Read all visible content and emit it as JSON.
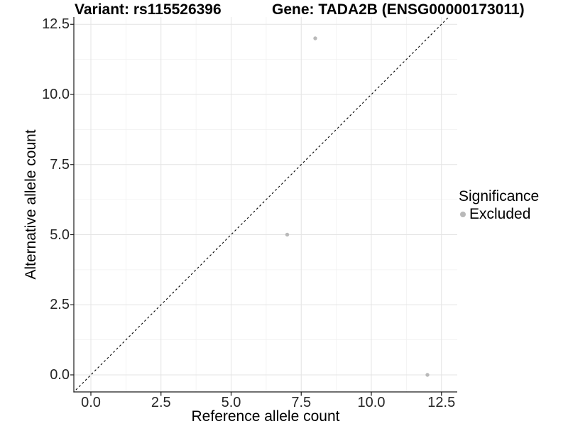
{
  "chart_data": {
    "type": "scatter",
    "title_left": "Variant: rs115526396",
    "title_right": "Gene: TADA2B (ENSG00000173011)",
    "xlabel": "Reference allele count",
    "ylabel": "Alternative allele count",
    "xlim": [
      -0.6,
      13.1
    ],
    "ylim": [
      -0.6,
      12.8
    ],
    "major_ticks": [
      0,
      2.5,
      5,
      7.5,
      10,
      12.5
    ],
    "tick_labels": [
      "0.0",
      "2.5",
      "5.0",
      "7.5",
      "10.0",
      "12.5"
    ],
    "minor_ticks": [
      1.25,
      3.75,
      6.25,
      8.75,
      11.25
    ],
    "grid": true,
    "identity_line": {
      "slope": 1,
      "intercept": 0,
      "style": "dashed",
      "color": "#000000"
    },
    "series": [
      {
        "name": "Excluded",
        "color": "#b9b9b9",
        "points": [
          {
            "x": 8,
            "y": 12
          },
          {
            "x": 7,
            "y": 5
          },
          {
            "x": 12,
            "y": 0
          }
        ]
      }
    ],
    "legend": {
      "title": "Significance",
      "position": "right",
      "items": [
        {
          "label": "Excluded",
          "color": "#b9b9b9"
        }
      ]
    }
  },
  "colors": {
    "background": "#ffffff",
    "grid_major": "#e4e4e4",
    "grid_minor": "#f0f0f0",
    "axis": "#1a1a1a",
    "point": "#b9b9b9",
    "tick_text": "#262626",
    "title_text": "#000000"
  }
}
